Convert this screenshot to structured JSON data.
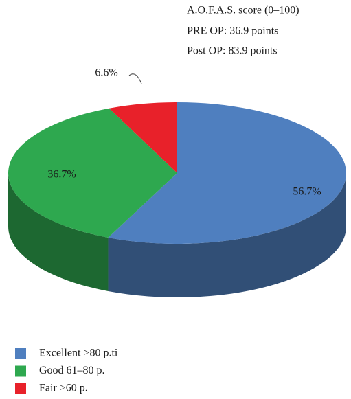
{
  "chart_data": {
    "type": "pie",
    "annotations": [
      "A.O.F.A.S. score (0–100)",
      "PRE OP: 36.9 points",
      "Post OP: 83.9 points"
    ],
    "categories": [
      "Excellent >80 p.ti",
      "Good 61–80 p.",
      "Fair >60 p."
    ],
    "values": [
      56.7,
      36.7,
      6.6
    ],
    "value_labels": [
      "56.7%",
      "36.7%",
      "6.6%"
    ],
    "colors": [
      "#4f7fbf",
      "#2ea84f",
      "#e8212a"
    ],
    "legend": "bottom-left"
  }
}
